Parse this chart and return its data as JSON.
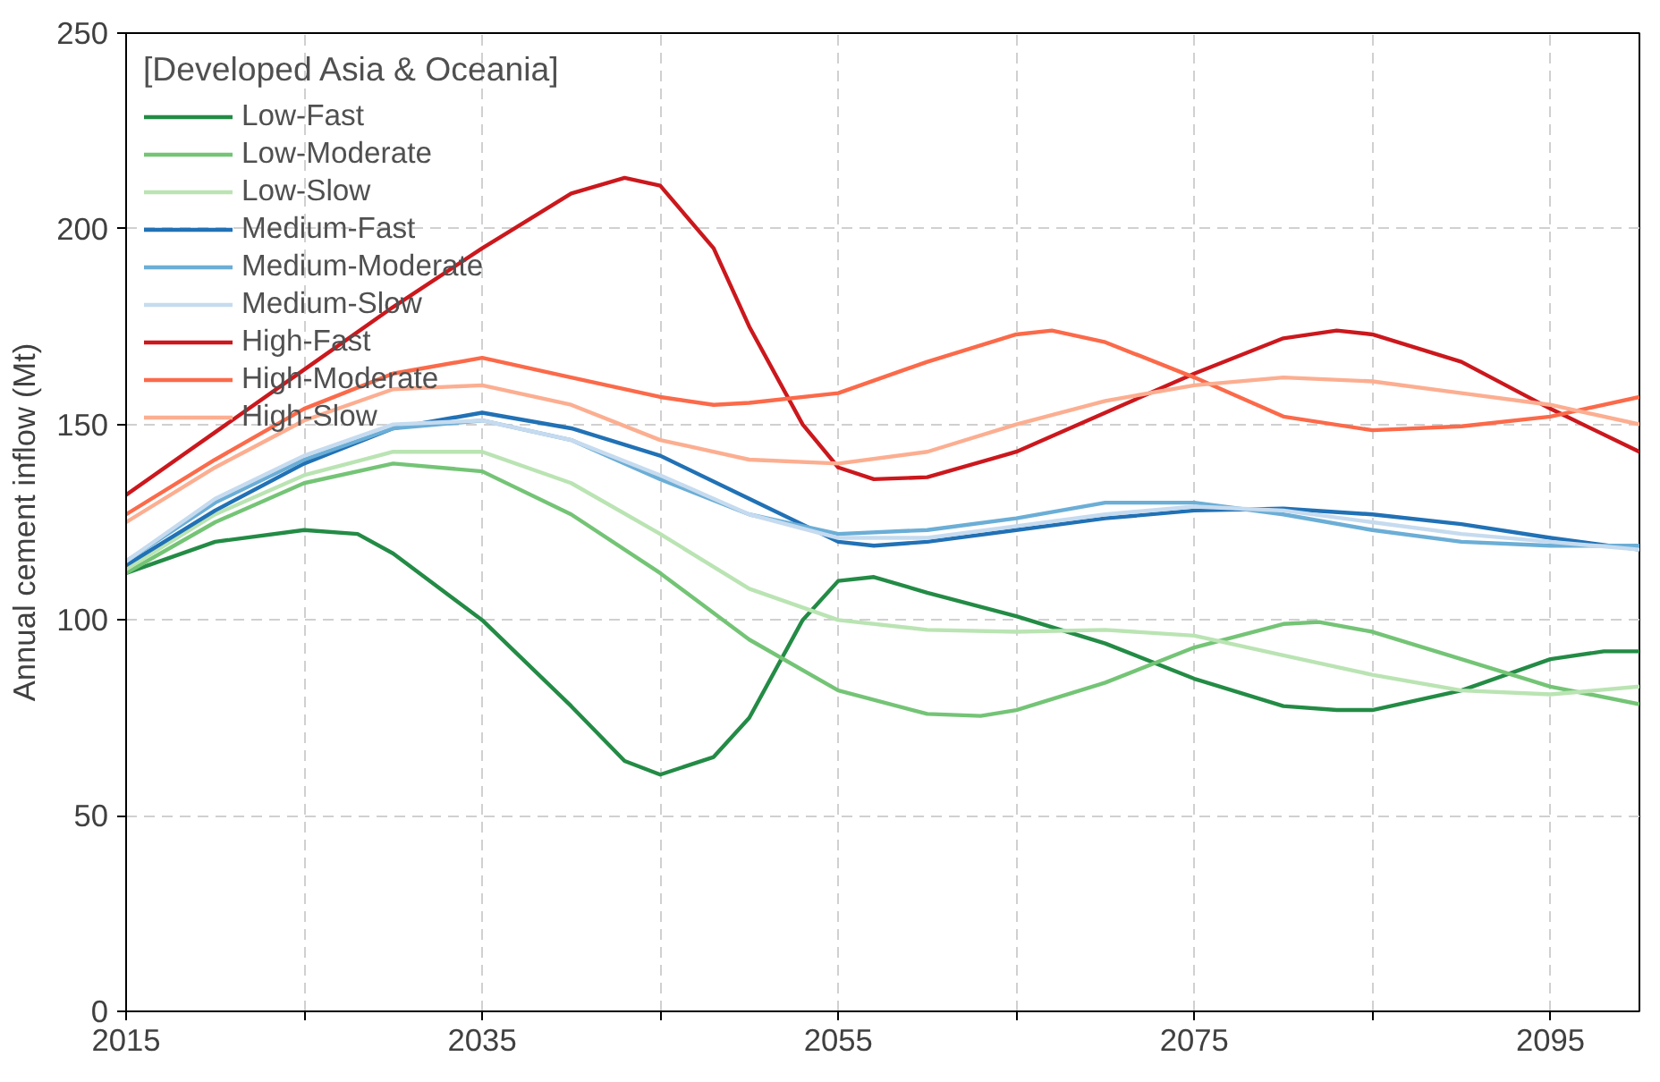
{
  "chart_data": {
    "type": "line",
    "ylabel": "Annual cement inflow (Mt)",
    "legend_title": "[Developed Asia & Oceania]",
    "legend": "top left",
    "grid": true,
    "line_style": "solid",
    "marker": "none",
    "xlim": [
      2015,
      2100
    ],
    "xticks": [
      2015,
      {
        "value": 2025,
        "label": null
      },
      2035,
      {
        "value": 2045,
        "label": null
      },
      2055,
      {
        "value": 2065,
        "label": null
      },
      2075,
      {
        "value": 2085,
        "label": null
      },
      2095
    ],
    "ylim": [
      0,
      250
    ],
    "yticks": [
      0,
      50,
      100,
      150,
      200,
      250
    ],
    "series": [
      {
        "name": "Low-Fast",
        "color": "#238b45",
        "x": [
          2015,
          2020,
          2025,
          2028,
          2030,
          2035,
          2040,
          2043,
          2045,
          2048,
          2050,
          2053,
          2055,
          2057,
          2060,
          2065,
          2070,
          2075,
          2080,
          2083,
          2085,
          2090,
          2095,
          2098,
          2100
        ],
        "values": [
          112,
          120,
          123,
          122,
          117,
          100,
          78,
          64,
          60.5,
          65,
          75,
          100,
          110,
          111,
          107,
          101,
          94,
          85,
          78,
          77,
          77,
          82,
          90,
          92,
          92
        ]
      },
      {
        "name": "Low-Moderate",
        "color": "#74c476",
        "x": [
          2015,
          2020,
          2025,
          2030,
          2035,
          2040,
          2045,
          2050,
          2055,
          2060,
          2063,
          2065,
          2070,
          2075,
          2080,
          2082,
          2085,
          2090,
          2095,
          2100
        ],
        "values": [
          112,
          125,
          135,
          140,
          138,
          127,
          112,
          95,
          82,
          76,
          75.5,
          77,
          84,
          93,
          99,
          99.5,
          97,
          90,
          83,
          78.5
        ]
      },
      {
        "name": "Low-Slow",
        "color": "#bae4b3",
        "x": [
          2015,
          2020,
          2025,
          2030,
          2035,
          2040,
          2045,
          2050,
          2055,
          2060,
          2065,
          2070,
          2075,
          2080,
          2085,
          2090,
          2095,
          2100
        ],
        "values": [
          113,
          127,
          137,
          143,
          143,
          135,
          122,
          108,
          100,
          97.5,
          97,
          97.5,
          96,
          91,
          86,
          82,
          81,
          83
        ]
      },
      {
        "name": "Medium-Fast",
        "color": "#2171b5",
        "x": [
          2015,
          2020,
          2025,
          2030,
          2035,
          2040,
          2045,
          2050,
          2055,
          2057,
          2060,
          2065,
          2070,
          2075,
          2080,
          2085,
          2090,
          2095,
          2100
        ],
        "values": [
          114,
          128,
          140,
          149,
          153,
          149,
          142,
          131,
          120,
          119,
          120,
          123,
          126,
          128,
          128.5,
          127,
          124.5,
          121,
          118
        ]
      },
      {
        "name": "Medium-Moderate",
        "color": "#6baed6",
        "x": [
          2015,
          2020,
          2025,
          2030,
          2035,
          2040,
          2045,
          2050,
          2055,
          2060,
          2065,
          2070,
          2075,
          2080,
          2085,
          2090,
          2095,
          2100
        ],
        "values": [
          115,
          130,
          141,
          149,
          151,
          146,
          136,
          127,
          122,
          123,
          126,
          130,
          130,
          127,
          123,
          120,
          119,
          119
        ]
      },
      {
        "name": "Medium-Slow",
        "color": "#c6dbef",
        "x": [
          2015,
          2020,
          2025,
          2030,
          2035,
          2040,
          2045,
          2050,
          2055,
          2060,
          2065,
          2070,
          2075,
          2080,
          2085,
          2090,
          2095,
          2100
        ],
        "values": [
          115,
          131,
          142,
          150,
          151,
          146,
          137,
          127,
          121,
          121,
          124,
          127,
          129,
          128,
          125,
          122,
          120,
          118
        ]
      },
      {
        "name": "High-Fast",
        "color": "#cb181d",
        "x": [
          2015,
          2020,
          2025,
          2030,
          2035,
          2040,
          2043,
          2045,
          2048,
          2050,
          2053,
          2055,
          2057,
          2060,
          2065,
          2070,
          2075,
          2080,
          2083,
          2085,
          2090,
          2095,
          2100
        ],
        "values": [
          132,
          148,
          164,
          180,
          195,
          209,
          213,
          211,
          195,
          175,
          150,
          139,
          136,
          136.5,
          143,
          153,
          163,
          172,
          174,
          173,
          166,
          154,
          143
        ]
      },
      {
        "name": "High-Moderate",
        "color": "#fb6a4a",
        "x": [
          2015,
          2020,
          2025,
          2030,
          2035,
          2040,
          2045,
          2048,
          2050,
          2055,
          2060,
          2065,
          2067,
          2070,
          2075,
          2080,
          2085,
          2090,
          2095,
          2100
        ],
        "values": [
          127,
          141,
          154,
          163,
          167,
          162,
          157,
          155,
          155.5,
          158,
          166,
          173,
          174,
          171,
          162,
          152,
          148.5,
          149.5,
          152,
          157
        ]
      },
      {
        "name": "High-Slow",
        "color": "#fcae91",
        "x": [
          2015,
          2020,
          2025,
          2030,
          2035,
          2040,
          2045,
          2050,
          2055,
          2060,
          2065,
          2070,
          2075,
          2080,
          2085,
          2090,
          2095,
          2100
        ],
        "values": [
          125,
          139,
          151,
          159,
          160,
          155,
          146,
          141,
          140,
          143,
          150,
          156,
          160,
          162,
          161,
          158,
          155,
          150
        ]
      }
    ]
  }
}
